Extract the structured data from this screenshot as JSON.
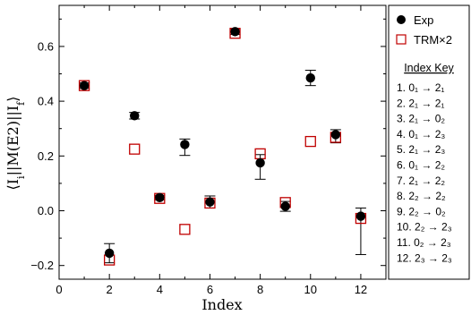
{
  "chart_data": {
    "type": "scatter",
    "xlabel": "Index",
    "ylabel": "⟨I_i||M(E2)||I_f⟩",
    "xlim": [
      0,
      13
    ],
    "ylim": [
      -0.25,
      0.75
    ],
    "xticks": [
      0,
      2,
      4,
      6,
      8,
      10,
      12
    ],
    "yticks": [
      -0.2,
      0.0,
      0.2,
      0.4,
      0.6
    ],
    "ytick_labels": [
      "−0.2",
      "0.0",
      "0.2",
      "0.4",
      "0.6"
    ],
    "legend_position": "right",
    "series": [
      {
        "name": "Exp",
        "marker": "filled-circle",
        "color": "#000000",
        "x": [
          1,
          2,
          3,
          4,
          5,
          6,
          7,
          8,
          9,
          10,
          11,
          12
        ],
        "y": [
          0.457,
          -0.155,
          0.347,
          0.048,
          0.242,
          0.032,
          0.654,
          0.175,
          0.016,
          0.485,
          0.278,
          -0.02
        ],
        "err_lo": [
          0.01,
          0.035,
          0.012,
          0.008,
          0.04,
          0.022,
          0.01,
          0.06,
          0.018,
          0.028,
          0.03,
          0.14
        ],
        "err_hi": [
          0.01,
          0.035,
          0.012,
          0.008,
          0.02,
          0.022,
          0.01,
          0.03,
          0.018,
          0.028,
          0.018,
          0.03
        ]
      },
      {
        "name": "TRM×2",
        "marker": "open-square",
        "color": "#c00000",
        "x": [
          1,
          2,
          3,
          4,
          5,
          6,
          7,
          8,
          9,
          10,
          11,
          12
        ],
        "y": [
          0.457,
          -0.18,
          0.225,
          0.045,
          -0.068,
          0.028,
          0.648,
          0.208,
          0.03,
          0.253,
          0.268,
          -0.028
        ]
      }
    ],
    "index_key": {
      "title": "Index Key",
      "entries": [
        "1.  0₁ → 2₁",
        "2.  2₁ → 2₁",
        "3.  2₁ → 0₂",
        "4.  0₁ → 2₃",
        "5.  2₁ → 2₃",
        "6.  0₁ → 2₂",
        "7.  2₁ → 2₂",
        "8.  2₂ → 2₂",
        "9.  2₂ → 0₂",
        "10.  2₂ → 2₃",
        "11.  0₂ → 2₃",
        "12.  2₃ → 2₃"
      ]
    }
  }
}
